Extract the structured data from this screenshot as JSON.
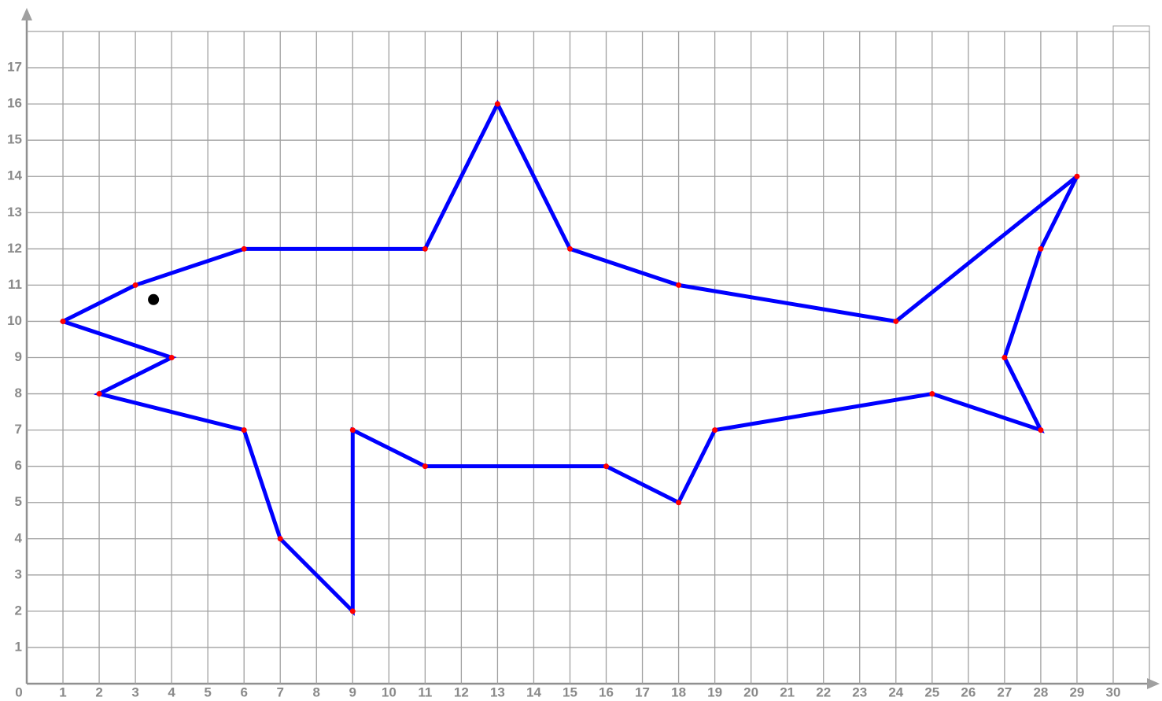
{
  "chart_data": {
    "type": "line",
    "x": [
      1,
      3,
      6,
      11,
      13,
      15,
      18,
      24,
      29,
      28,
      27,
      28,
      25,
      19,
      18,
      16,
      11,
      9,
      9,
      7,
      6,
      2,
      4,
      1
    ],
    "values": [
      10,
      11,
      12,
      12,
      16,
      12,
      11,
      10,
      14,
      12,
      9,
      7,
      8,
      7,
      5,
      6,
      6,
      7,
      2,
      4,
      7,
      8,
      9,
      10
    ],
    "color": "#0000ff",
    "point_color": "#ff0000",
    "eye": {
      "x": 3.5,
      "y": 10.6,
      "color": "#000000"
    },
    "xlim": [
      0,
      31
    ],
    "ylim": [
      0,
      18
    ],
    "xticks": [
      0,
      1,
      2,
      3,
      4,
      5,
      6,
      7,
      8,
      9,
      10,
      11,
      12,
      13,
      14,
      15,
      16,
      17,
      18,
      19,
      20,
      21,
      22,
      23,
      24,
      25,
      26,
      27,
      28,
      29,
      30
    ],
    "yticks": [
      1,
      2,
      3,
      4,
      5,
      6,
      7,
      8,
      9,
      10,
      11,
      12,
      13,
      14,
      15,
      16,
      17
    ],
    "grid": true
  }
}
